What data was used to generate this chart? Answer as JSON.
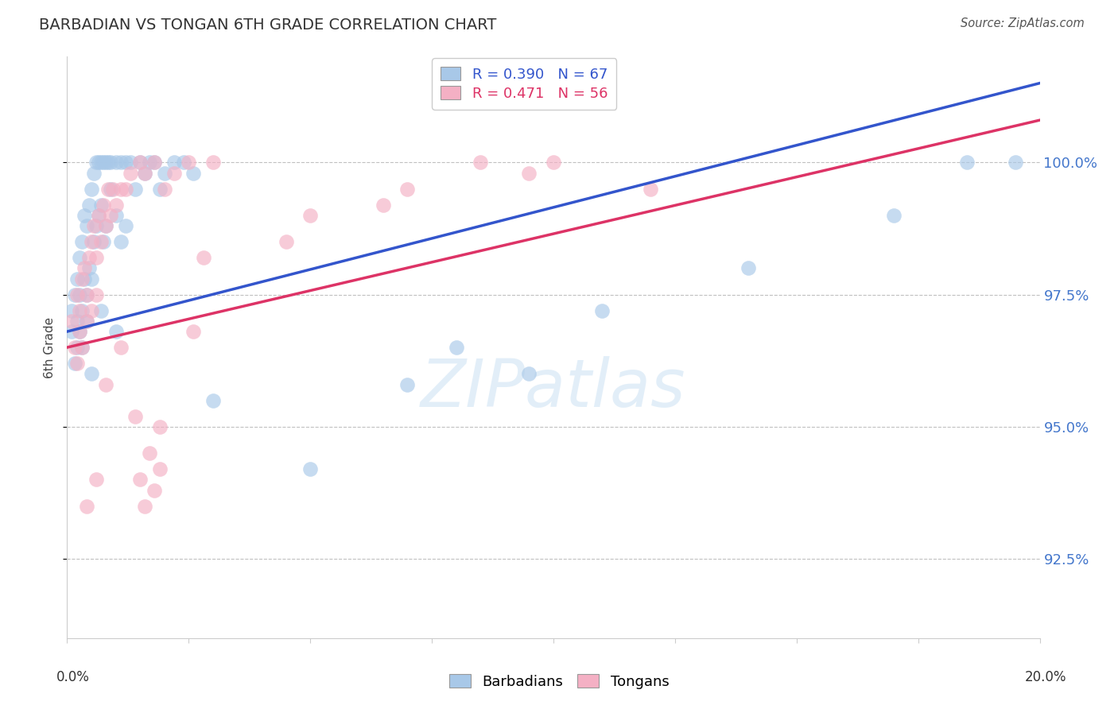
{
  "title": "BARBADIAN VS TONGAN 6TH GRADE CORRELATION CHART",
  "source": "Source: ZipAtlas.com",
  "ylabel": "6th Grade",
  "xlim": [
    0.0,
    20.0
  ],
  "ylim": [
    91.0,
    102.0
  ],
  "yticks": [
    92.5,
    95.0,
    97.5,
    100.0
  ],
  "ytick_labels": [
    "92.5%",
    "95.0%",
    "97.5%",
    "100.0%"
  ],
  "r_blue": 0.39,
  "n_blue": 67,
  "r_pink": 0.471,
  "n_pink": 56,
  "blue_fill": "#a8c8e8",
  "pink_fill": "#f4b0c4",
  "blue_line": "#3355cc",
  "pink_line": "#dd3366",
  "blue_label": "Barbadians",
  "pink_label": "Tongans",
  "blue_dots_x": [
    0.1,
    0.1,
    0.15,
    0.15,
    0.2,
    0.2,
    0.2,
    0.25,
    0.25,
    0.25,
    0.3,
    0.3,
    0.3,
    0.35,
    0.35,
    0.4,
    0.4,
    0.4,
    0.45,
    0.45,
    0.5,
    0.5,
    0.55,
    0.55,
    0.6,
    0.6,
    0.65,
    0.65,
    0.7,
    0.7,
    0.75,
    0.75,
    0.8,
    0.8,
    0.85,
    0.9,
    0.9,
    1.0,
    1.0,
    1.1,
    1.1,
    1.2,
    1.2,
    1.3,
    1.4,
    1.5,
    1.6,
    1.7,
    1.8,
    1.9,
    2.0,
    2.2,
    2.4,
    2.6,
    0.5,
    0.7,
    1.0,
    3.0,
    5.0,
    7.0,
    8.0,
    9.5,
    11.0,
    14.0,
    17.0,
    18.5,
    19.5
  ],
  "blue_dots_y": [
    97.2,
    96.8,
    97.5,
    96.2,
    97.8,
    96.5,
    97.0,
    98.2,
    96.8,
    97.5,
    98.5,
    97.2,
    96.5,
    99.0,
    97.8,
    98.8,
    97.5,
    97.0,
    99.2,
    98.0,
    99.5,
    97.8,
    99.8,
    98.5,
    100.0,
    98.8,
    100.0,
    99.0,
    100.0,
    99.2,
    100.0,
    98.5,
    100.0,
    98.8,
    100.0,
    100.0,
    99.5,
    100.0,
    99.0,
    100.0,
    98.5,
    100.0,
    98.8,
    100.0,
    99.5,
    100.0,
    99.8,
    100.0,
    100.0,
    99.5,
    99.8,
    100.0,
    100.0,
    99.8,
    96.0,
    97.2,
    96.8,
    95.5,
    94.2,
    95.8,
    96.5,
    96.0,
    97.2,
    98.0,
    99.0,
    100.0,
    100.0
  ],
  "pink_dots_x": [
    0.1,
    0.15,
    0.2,
    0.2,
    0.25,
    0.25,
    0.3,
    0.3,
    0.35,
    0.4,
    0.4,
    0.45,
    0.5,
    0.5,
    0.55,
    0.6,
    0.65,
    0.7,
    0.75,
    0.8,
    0.85,
    0.9,
    0.95,
    1.0,
    1.1,
    1.2,
    1.3,
    1.5,
    1.6,
    1.8,
    2.0,
    2.2,
    2.5,
    3.0,
    5.0,
    7.0,
    8.5,
    9.5,
    10.0,
    12.0,
    1.5,
    1.6,
    1.7,
    1.8,
    1.9,
    0.4,
    0.6,
    2.8,
    4.5,
    6.5,
    1.1,
    0.8,
    1.4,
    2.6,
    0.6,
    1.9
  ],
  "pink_dots_y": [
    97.0,
    96.5,
    97.5,
    96.2,
    97.2,
    96.8,
    97.8,
    96.5,
    98.0,
    97.5,
    97.0,
    98.2,
    98.5,
    97.2,
    98.8,
    98.2,
    99.0,
    98.5,
    99.2,
    98.8,
    99.5,
    99.0,
    99.5,
    99.2,
    99.5,
    99.5,
    99.8,
    100.0,
    99.8,
    100.0,
    99.5,
    99.8,
    100.0,
    100.0,
    99.0,
    99.5,
    100.0,
    99.8,
    100.0,
    99.5,
    94.0,
    93.5,
    94.5,
    93.8,
    94.2,
    93.5,
    94.0,
    98.2,
    98.5,
    99.2,
    96.5,
    95.8,
    95.2,
    96.8,
    97.5,
    95.0
  ],
  "line_blue_x0": 0.0,
  "line_blue_y0": 96.8,
  "line_blue_x1": 20.0,
  "line_blue_y1": 101.5,
  "line_pink_x0": 0.0,
  "line_pink_y0": 96.5,
  "line_pink_x1": 20.0,
  "line_pink_y1": 100.8
}
